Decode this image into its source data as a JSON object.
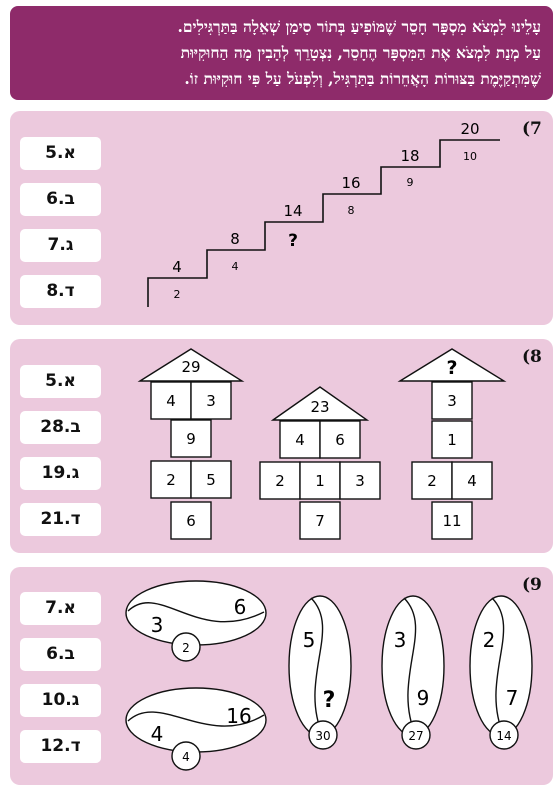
{
  "intro": {
    "lines": [
      "עָלֵינוּ לִמְצֹא מִסְפָּר חָסֵר שֶׁמּוֹפִיעַ בְּתוֹר סִימַן שְׁאֵלָה בַּתַּרְגִּילִים.",
      "עַל מְנַת לִמְצֹא אֶת הַמִּסְפָּר הֶחָסֵר, נִצְטָרֵךְ לְהָבִין מָה הַחוּקִיּוּת",
      "שֶׁמִּתְקַיֶּמֶת בַּצּוּרוֹת הָאֲחֵרוֹת בַּתַּרְגִּיל, וְלִפְעֹל עַל פִּי חוּקִיּוּת זוֹ."
    ]
  },
  "q7": {
    "number": "(7",
    "options": [
      "5.א",
      "6.ב",
      "7.ג",
      "8.ד"
    ],
    "steps_top": [
      "4",
      "8",
      "14",
      "16",
      "18",
      "20"
    ],
    "steps_bottom": [
      "2",
      "4",
      "?",
      "8",
      "9",
      "10"
    ]
  },
  "q8": {
    "number": "(8",
    "options": [
      "5.א",
      "28.ב",
      "19.ג",
      "21.ד"
    ],
    "house1": {
      "roof": "29",
      "row1": [
        "4",
        "3"
      ],
      "row2": [
        "9"
      ],
      "row3": [
        "2",
        "5"
      ],
      "row4": [
        "6"
      ]
    },
    "house2": {
      "roof": "23",
      "row1": [
        "4",
        "6"
      ],
      "row2": [
        "2",
        "1",
        "3"
      ],
      "row3": [
        "7"
      ]
    },
    "house3": {
      "roof": "?",
      "row1": [
        "3"
      ],
      "row2": [
        "1"
      ],
      "row3": [
        "2",
        "4"
      ],
      "row4": [
        "11"
      ]
    }
  },
  "q9": {
    "number": "(9",
    "options": [
      "7.א",
      "6.ב",
      "10.ג",
      "12.ד"
    ],
    "oval1": {
      "left": "3",
      "right": "6",
      "circle": "2"
    },
    "oval2": {
      "left": "4",
      "right": "16",
      "circle": "4"
    },
    "seed1": {
      "top": "5",
      "bottom": "?",
      "circle": "30"
    },
    "seed2": {
      "top": "3",
      "bottom": "9",
      "circle": "27"
    },
    "seed3": {
      "top": "2",
      "bottom": "7",
      "circle": "14"
    }
  }
}
